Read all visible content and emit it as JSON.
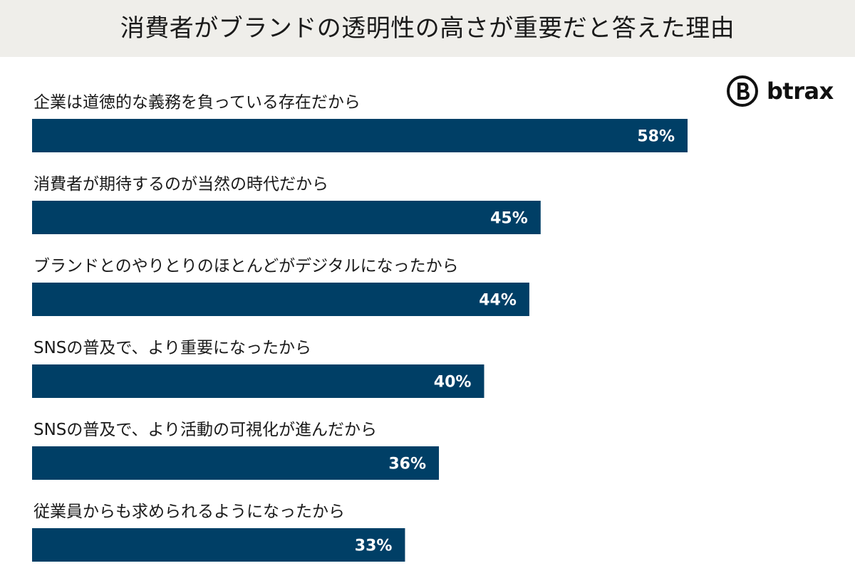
{
  "header": {
    "title": "消費者がブランドの透明性の高さが重要だと答えた理由"
  },
  "brand": {
    "name": "btrax",
    "icon": "btrax-b-logo-icon"
  },
  "colors": {
    "bar": "#003f66",
    "title_background": "#efeeea",
    "value_label": "#ffffff"
  },
  "chart_data": {
    "type": "bar",
    "orientation": "horizontal",
    "title": "消費者がブランドの透明性の高さが重要だと答えた理由",
    "categories": [
      "企業は道徳的な義務を負っている存在だから",
      "消費者が期待するのが当然の時代だから",
      "ブランドとのやりとりのほとんどがデジタルになったから",
      "SNSの普及で、より重要になったから",
      "SNSの普及で、より活動の可視化が進んだから",
      "従業員からも求められるようになったから"
    ],
    "values": [
      58,
      45,
      44,
      40,
      36,
      33
    ],
    "value_labels": [
      "58%",
      "45%",
      "44%",
      "40%",
      "36%",
      "33%"
    ],
    "unit": "%",
    "xlim": [
      0,
      75
    ],
    "grid": false,
    "legend": "none"
  }
}
